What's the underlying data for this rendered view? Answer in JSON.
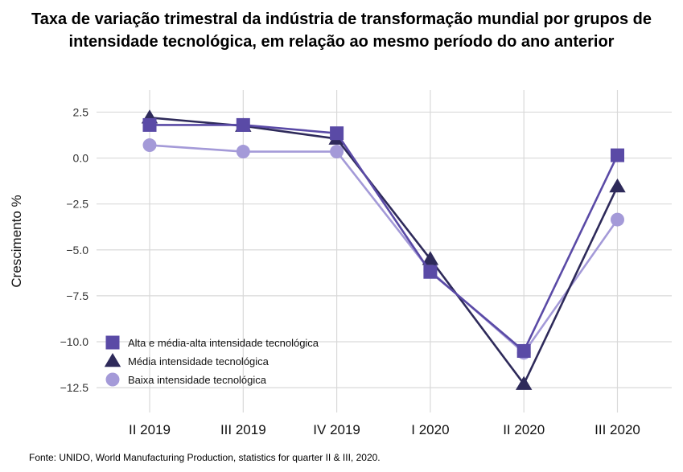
{
  "title_line1": "Taxa de variação trimestral da indústria de transformação mundial por grupos de",
  "title_line2": "intensidade tecnológica, em relação ao mesmo período do ano anterior",
  "source": "Fonte: UNIDO, World Manufacturing Production, statistics for quarter II & III, 2020.",
  "chart_data": {
    "type": "line",
    "title": "Taxa de variação trimestral da indústria de transformação mundial por grupos de intensidade tecnológica, em relação ao mesmo período do ano anterior",
    "ylabel": "Crescimento %",
    "xlabel": "",
    "categories": [
      "II 2019",
      "III 2019",
      "IV 2019",
      "I 2020",
      "II 2020",
      "III 2020"
    ],
    "ylim": [
      -13.5,
      3.7
    ],
    "yticks": [
      2.5,
      0.0,
      -2.5,
      -5.0,
      -7.5,
      -10.0,
      -12.5
    ],
    "ytick_labels": [
      "2.5",
      "0.0",
      "−2.5",
      "−5.0",
      "−7.5",
      "−10.0",
      "−12.5"
    ],
    "grid": true,
    "legend_position": "bottom-left",
    "series": [
      {
        "name": "Alta e média-alta intensidade tecnológica",
        "marker": "square",
        "color": "#5a4aa6",
        "values": [
          1.8,
          1.8,
          1.35,
          -6.2,
          -10.5,
          0.15
        ]
      },
      {
        "name": "Média intensidade tecnológica",
        "marker": "triangle",
        "color": "#2e2a5a",
        "values": [
          2.2,
          1.75,
          1.05,
          -5.5,
          -12.3,
          -1.55
        ]
      },
      {
        "name": "Baixa intensidade tecnológica",
        "marker": "circle",
        "color": "#a49ad8",
        "values": [
          0.7,
          0.35,
          0.35,
          -6.15,
          -10.6,
          -3.35
        ]
      }
    ]
  }
}
